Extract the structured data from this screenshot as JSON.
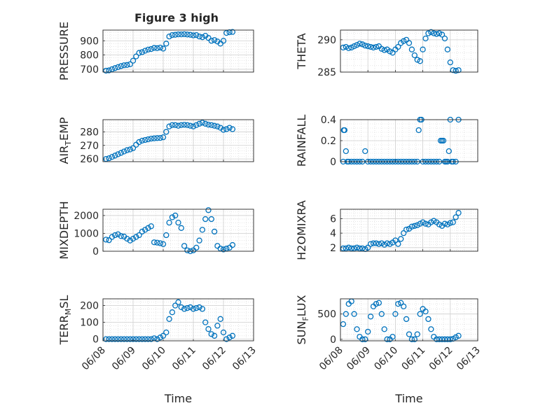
{
  "figure": {
    "title": "Figure 3 high",
    "marker_color": "#0072bd",
    "x_tick_labels": [
      "06/08",
      "06/09",
      "06/10",
      "06/11",
      "06/12",
      "06/13"
    ]
  },
  "chart_data": [
    {
      "type": "scatter",
      "ylabel": "PRESSURE",
      "xlabel": "",
      "grid": true,
      "xlim": [
        "06/08",
        "06/13"
      ],
      "ylim": [
        680,
        975
      ],
      "yticks": [
        700,
        800,
        900
      ],
      "x": [
        8.1,
        8.2,
        8.3,
        8.4,
        8.5,
        8.6,
        8.7,
        8.8,
        8.9,
        9.0,
        9.1,
        9.2,
        9.3,
        9.4,
        9.5,
        9.6,
        9.7,
        9.8,
        9.9,
        10.0,
        10.1,
        10.2,
        10.3,
        10.4,
        10.5,
        10.6,
        10.7,
        10.8,
        10.9,
        11.0,
        11.1,
        11.2,
        11.3,
        11.4,
        11.5,
        11.6,
        11.7,
        11.8,
        11.9,
        12.0,
        12.1,
        12.2,
        12.3
      ],
      "y": [
        690,
        692,
        700,
        708,
        715,
        722,
        728,
        730,
        735,
        760,
        790,
        815,
        820,
        830,
        838,
        842,
        850,
        848,
        852,
        845,
        880,
        930,
        940,
        942,
        945,
        945,
        946,
        944,
        942,
        938,
        940,
        930,
        925,
        935,
        920,
        900,
        905,
        895,
        880,
        900,
        955,
        960,
        962
      ]
    },
    {
      "type": "scatter",
      "ylabel": "THETA",
      "xlabel": "",
      "grid": true,
      "xlim": [
        "06/08",
        "06/13"
      ],
      "ylim": [
        285,
        291.5
      ],
      "yticks": [
        285,
        290
      ],
      "x": [
        8.1,
        8.2,
        8.3,
        8.4,
        8.5,
        8.6,
        8.7,
        8.8,
        8.9,
        9.0,
        9.1,
        9.2,
        9.3,
        9.4,
        9.5,
        9.6,
        9.7,
        9.8,
        9.9,
        10.0,
        10.1,
        10.2,
        10.3,
        10.4,
        10.5,
        10.6,
        10.7,
        10.8,
        10.9,
        11.0,
        11.1,
        11.2,
        11.3,
        11.4,
        11.5,
        11.6,
        11.7,
        11.8,
        11.9,
        12.0,
        12.1,
        12.2,
        12.3
      ],
      "y": [
        288.8,
        288.9,
        288.7,
        288.8,
        289.0,
        289.2,
        289.4,
        289.3,
        289.1,
        289.0,
        288.9,
        288.8,
        288.9,
        289.0,
        288.6,
        288.4,
        288.5,
        288.2,
        288.0,
        288.5,
        288.9,
        289.5,
        289.8,
        290.0,
        289.5,
        288.5,
        287.6,
        286.9,
        286.7,
        288.5,
        290.2,
        291.0,
        291.2,
        291.0,
        290.9,
        291.0,
        290.8,
        290.2,
        288.5,
        286.5,
        285.3,
        285.2,
        285.3
      ]
    },
    {
      "type": "scatter",
      "ylabel": "AIR_TEMP",
      "xlabel": "",
      "grid": true,
      "xlim": [
        "06/08",
        "06/13"
      ],
      "ylim": [
        258,
        289
      ],
      "yticks": [
        260,
        270,
        280
      ],
      "x": [
        8.1,
        8.2,
        8.3,
        8.4,
        8.5,
        8.6,
        8.7,
        8.8,
        8.9,
        9.0,
        9.1,
        9.2,
        9.3,
        9.4,
        9.5,
        9.6,
        9.7,
        9.8,
        9.9,
        10.0,
        10.1,
        10.2,
        10.3,
        10.4,
        10.5,
        10.6,
        10.7,
        10.8,
        10.9,
        11.0,
        11.1,
        11.2,
        11.3,
        11.4,
        11.5,
        11.6,
        11.7,
        11.8,
        11.9,
        12.0,
        12.1,
        12.2,
        12.3
      ],
      "y": [
        260,
        260.5,
        261.5,
        262.5,
        263.5,
        264.5,
        265.5,
        266.5,
        267,
        268,
        270.5,
        272.5,
        273.5,
        274,
        274.5,
        275,
        275.2,
        275.4,
        275.5,
        276,
        280,
        284,
        285,
        285,
        284.5,
        285,
        285.2,
        285,
        284.5,
        284,
        285,
        286,
        286.8,
        286,
        285.3,
        285,
        284.5,
        284,
        283,
        281.5,
        282,
        283,
        282
      ]
    },
    {
      "type": "scatter",
      "ylabel": "RAINFALL",
      "xlabel": "",
      "grid": true,
      "xlim": [
        "06/08",
        "06/13"
      ],
      "ylim": [
        0,
        0.4
      ],
      "yticks": [
        0,
        0.2,
        0.4
      ],
      "x": [
        8.1,
        8.12,
        8.15,
        8.2,
        8.25,
        8.3,
        8.4,
        8.5,
        8.6,
        8.7,
        8.8,
        8.9,
        9.0,
        9.1,
        9.2,
        9.3,
        9.4,
        9.5,
        9.6,
        9.7,
        9.8,
        9.9,
        10.0,
        10.1,
        10.2,
        10.3,
        10.4,
        10.5,
        10.6,
        10.7,
        10.8,
        10.85,
        10.9,
        10.95,
        11.0,
        11.1,
        11.2,
        11.3,
        11.4,
        11.5,
        11.6,
        11.65,
        11.7,
        11.75,
        11.8,
        11.85,
        11.9,
        11.95,
        12.0,
        12.05,
        12.1,
        12.2,
        12.3
      ],
      "y": [
        0,
        0.3,
        0.3,
        0.1,
        0,
        0,
        0,
        0,
        0,
        0,
        0,
        0.1,
        0,
        0,
        0,
        0,
        0,
        0,
        0,
        0,
        0,
        0,
        0,
        0,
        0,
        0,
        0,
        0,
        0,
        0,
        0,
        0.3,
        0.4,
        0.4,
        0,
        0,
        0,
        0,
        0,
        0,
        0,
        0.2,
        0.2,
        0.2,
        0,
        0,
        0,
        0.1,
        0.4,
        0,
        0,
        0,
        0.4
      ]
    },
    {
      "type": "scatter",
      "ylabel": "MIXDEPTH",
      "xlabel": "",
      "grid": true,
      "xlim": [
        "06/08",
        "06/13"
      ],
      "ylim": [
        0,
        2350
      ],
      "yticks": [
        0,
        1000,
        2000
      ],
      "x": [
        8.1,
        8.2,
        8.3,
        8.4,
        8.5,
        8.6,
        8.7,
        8.8,
        8.9,
        9.0,
        9.1,
        9.2,
        9.3,
        9.4,
        9.5,
        9.6,
        9.7,
        9.8,
        9.9,
        10.0,
        10.1,
        10.2,
        10.3,
        10.4,
        10.5,
        10.6,
        10.7,
        10.8,
        10.9,
        11.0,
        11.1,
        11.2,
        11.3,
        11.4,
        11.5,
        11.6,
        11.7,
        11.8,
        11.9,
        12.0,
        12.1,
        12.2,
        12.3
      ],
      "y": [
        650,
        620,
        800,
        900,
        950,
        850,
        820,
        700,
        600,
        700,
        800,
        900,
        1100,
        1200,
        1300,
        1400,
        500,
        480,
        450,
        400,
        900,
        1600,
        1900,
        2000,
        1600,
        1300,
        300,
        50,
        0,
        50,
        200,
        600,
        1200,
        1800,
        2300,
        1800,
        1100,
        300,
        150,
        100,
        150,
        200,
        350
      ]
    },
    {
      "type": "scatter",
      "ylabel": "H2OMIXRA",
      "xlabel": "",
      "grid": true,
      "xlim": [
        "06/08",
        "06/13"
      ],
      "ylim": [
        1.5,
        7.3
      ],
      "yticks": [
        2,
        4,
        6
      ],
      "x": [
        8.1,
        8.2,
        8.3,
        8.4,
        8.5,
        8.6,
        8.7,
        8.8,
        8.9,
        9.0,
        9.1,
        9.2,
        9.3,
        9.4,
        9.5,
        9.6,
        9.7,
        9.8,
        9.9,
        10.0,
        10.1,
        10.2,
        10.3,
        10.4,
        10.5,
        10.6,
        10.7,
        10.8,
        10.9,
        11.0,
        11.1,
        11.2,
        11.3,
        11.4,
        11.5,
        11.6,
        11.7,
        11.8,
        11.9,
        12.0,
        12.1,
        12.2,
        12.3
      ],
      "y": [
        1.9,
        1.9,
        2.0,
        1.9,
        1.9,
        2.0,
        1.9,
        1.9,
        1.8,
        2.0,
        2.5,
        2.6,
        2.6,
        2.5,
        2.6,
        2.4,
        2.6,
        2.5,
        2.7,
        3.0,
        2.5,
        3.2,
        4.0,
        4.5,
        4.6,
        4.9,
        5.0,
        5.1,
        5.3,
        5.5,
        5.3,
        5.2,
        5.5,
        5.7,
        5.5,
        5.2,
        5.0,
        5.3,
        5.2,
        5.4,
        5.5,
        6.2,
        6.8
      ]
    },
    {
      "type": "scatter",
      "ylabel": "TERR_MSL",
      "xlabel": "Time",
      "grid": true,
      "xlim": [
        "06/08",
        "06/13"
      ],
      "ylim": [
        -10,
        240
      ],
      "yticks": [
        0,
        100,
        200
      ],
      "x": [
        8.1,
        8.2,
        8.3,
        8.4,
        8.5,
        8.6,
        8.7,
        8.8,
        8.9,
        9.0,
        9.1,
        9.2,
        9.3,
        9.4,
        9.5,
        9.6,
        9.7,
        9.8,
        9.9,
        10.0,
        10.1,
        10.2,
        10.3,
        10.4,
        10.5,
        10.6,
        10.7,
        10.8,
        10.9,
        11.0,
        11.1,
        11.2,
        11.3,
        11.4,
        11.5,
        11.6,
        11.7,
        11.8,
        11.9,
        12.0,
        12.1,
        12.2,
        12.3
      ],
      "y": [
        0,
        0,
        0,
        0,
        0,
        0,
        0,
        0,
        0,
        0,
        0,
        0,
        0,
        0,
        0,
        0,
        5,
        0,
        10,
        20,
        40,
        120,
        160,
        200,
        220,
        190,
        180,
        185,
        190,
        180,
        185,
        190,
        180,
        100,
        60,
        30,
        20,
        80,
        120,
        40,
        0,
        10,
        20
      ]
    },
    {
      "type": "scatter",
      "ylabel": "SUN_FLUX",
      "xlabel": "Time",
      "grid": true,
      "xlim": [
        "06/08",
        "06/13"
      ],
      "ylim": [
        -30,
        800
      ],
      "yticks": [
        0,
        500
      ],
      "x": [
        8.1,
        8.2,
        8.3,
        8.4,
        8.5,
        8.6,
        8.7,
        8.8,
        8.9,
        9.0,
        9.1,
        9.2,
        9.3,
        9.4,
        9.5,
        9.6,
        9.7,
        9.8,
        9.9,
        10.0,
        10.1,
        10.2,
        10.3,
        10.4,
        10.5,
        10.6,
        10.7,
        10.8,
        10.9,
        11.0,
        11.1,
        11.2,
        11.3,
        11.4,
        11.5,
        11.6,
        11.7,
        11.8,
        11.9,
        12.0,
        12.1,
        12.2,
        12.3
      ],
      "y": [
        300,
        500,
        700,
        750,
        500,
        200,
        50,
        0,
        0,
        150,
        450,
        650,
        700,
        720,
        500,
        200,
        0,
        0,
        50,
        500,
        700,
        720,
        650,
        400,
        100,
        0,
        0,
        100,
        500,
        600,
        550,
        400,
        200,
        50,
        0,
        0,
        0,
        0,
        0,
        0,
        10,
        40,
        70
      ]
    }
  ]
}
